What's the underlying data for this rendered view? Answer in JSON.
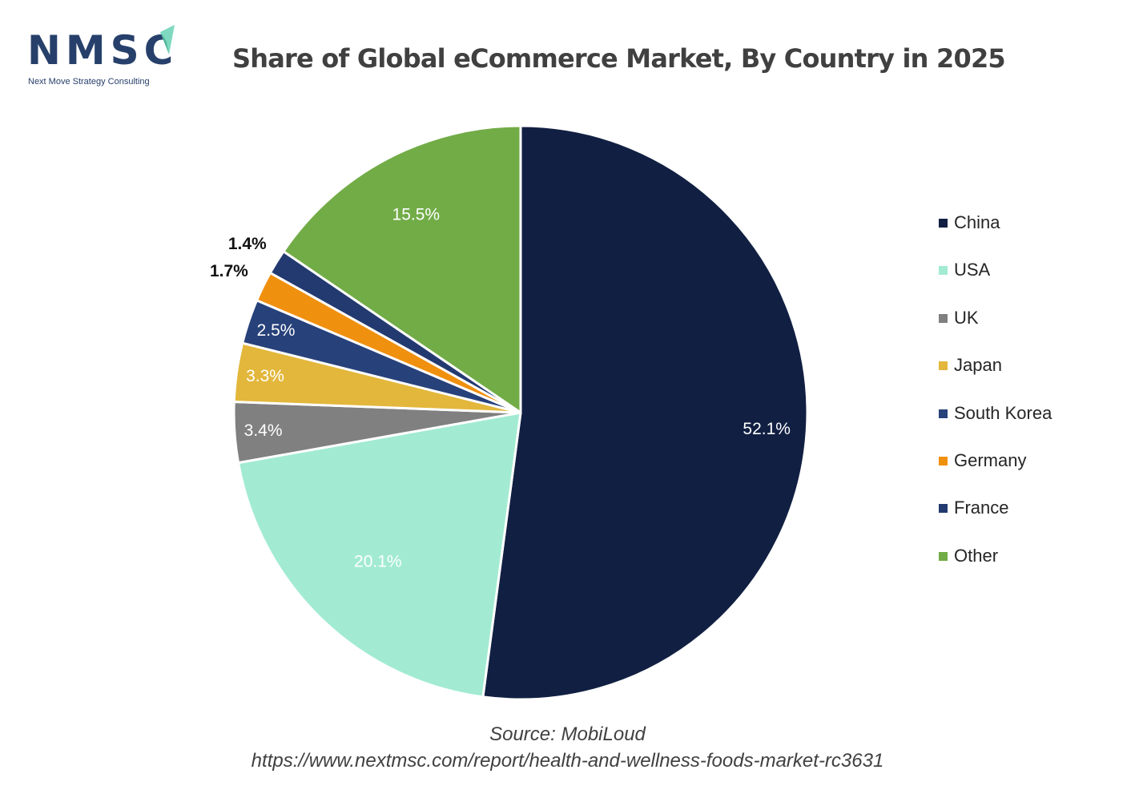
{
  "brand": {
    "logo_text": "NMSC",
    "logo_subtext": "Next Move Strategy Consulting",
    "logo_color": "#27406b",
    "arrow_color": "#7fd9c0"
  },
  "chart_data": {
    "type": "pie",
    "title": "Share of Global eCommerce Market, By Country in 2025",
    "start_angle_deg": 0,
    "direction": "clockwise",
    "legend_placement": "right",
    "slices": [
      {
        "name": "China",
        "value": 52.1,
        "label": "52.1%",
        "color": "#111f42",
        "label_color": "#ffffff",
        "label_weight": "normal"
      },
      {
        "name": "USA",
        "value": 20.1,
        "label": "20.1%",
        "color": "#a2ebd2",
        "label_color": "#ffffff",
        "label_weight": "normal"
      },
      {
        "name": "UK",
        "value": 3.4,
        "label": "3.4%",
        "color": "#808080",
        "label_color": "#ffffff",
        "label_weight": "normal"
      },
      {
        "name": "Japan",
        "value": 3.3,
        "label": "3.3%",
        "color": "#e3b73c",
        "label_color": "#ffffff",
        "label_weight": "normal"
      },
      {
        "name": "South Korea",
        "value": 2.5,
        "label": "2.5%",
        "color": "#27417a",
        "label_color": "#ffffff",
        "label_weight": "normal"
      },
      {
        "name": "Germany",
        "value": 1.7,
        "label": "1.7%",
        "color": "#f0900f",
        "label_color": "#111111",
        "label_weight": "bold"
      },
      {
        "name": "France",
        "value": 1.4,
        "label": "1.4%",
        "color": "#233a70",
        "label_color": "#111111",
        "label_weight": "bold"
      },
      {
        "name": "Other",
        "value": 15.5,
        "label": "15.5%",
        "color": "#72ac47",
        "label_color": "#ffffff",
        "label_weight": "normal"
      }
    ]
  },
  "footer": {
    "source": "Source: MobiLoud",
    "url": "https://www.nextmsc.com/report/health-and-wellness-foods-market-rc3631"
  }
}
